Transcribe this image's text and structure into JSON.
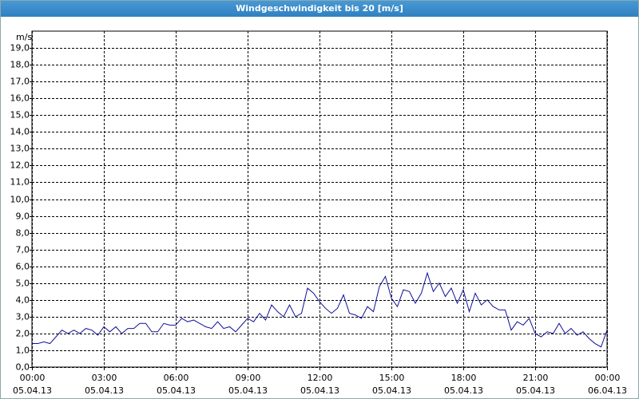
{
  "chart_data": {
    "type": "line",
    "title": "Windgeschwindigkeit bis 20 [m/s]",
    "y_label": "m/s",
    "x": [
      0,
      0.25,
      0.5,
      0.75,
      1,
      1.25,
      1.5,
      1.75,
      2,
      2.25,
      2.5,
      2.75,
      3,
      3.25,
      3.5,
      3.75,
      4,
      4.25,
      4.5,
      4.75,
      5,
      5.25,
      5.5,
      5.75,
      6,
      6.25,
      6.5,
      6.75,
      7,
      7.25,
      7.5,
      7.75,
      8,
      8.25,
      8.5,
      8.75,
      9,
      9.25,
      9.5,
      9.75,
      10,
      10.25,
      10.5,
      10.75,
      11,
      11.25,
      11.5,
      11.75,
      12,
      12.25,
      12.5,
      12.75,
      13,
      13.25,
      13.5,
      13.75,
      14,
      14.25,
      14.5,
      14.75,
      15,
      15.25,
      15.5,
      15.75,
      16,
      16.25,
      16.5,
      16.75,
      17,
      17.25,
      17.5,
      17.75,
      18,
      18.25,
      18.5,
      18.75,
      19,
      19.25,
      19.5,
      19.75,
      20,
      20.25,
      20.5,
      20.75,
      21,
      21.25,
      21.5,
      21.75,
      22,
      22.25,
      22.5,
      22.75,
      23,
      23.25,
      23.5,
      23.75,
      24
    ],
    "series": [
      {
        "name": "Windgeschwindigkeit",
        "color": "#10109a",
        "values": [
          1.4,
          1.4,
          1.5,
          1.4,
          1.8,
          2.2,
          2.0,
          2.2,
          2.0,
          2.3,
          2.2,
          1.9,
          2.4,
          2.1,
          2.4,
          2.0,
          2.3,
          2.3,
          2.6,
          2.6,
          2.1,
          2.1,
          2.6,
          2.5,
          2.5,
          2.9,
          2.7,
          2.8,
          2.6,
          2.4,
          2.3,
          2.7,
          2.3,
          2.4,
          2.1,
          2.5,
          2.9,
          2.7,
          3.2,
          2.8,
          3.7,
          3.3,
          3.0,
          3.7,
          3.0,
          3.2,
          4.7,
          4.4,
          3.9,
          3.5,
          3.2,
          3.5,
          4.3,
          3.2,
          3.1,
          2.9,
          3.6,
          3.3,
          4.8,
          5.4,
          4.1,
          3.6,
          4.6,
          4.5,
          3.8,
          4.4,
          5.6,
          4.5,
          5.0,
          4.2,
          4.7,
          3.8,
          4.6,
          3.3,
          4.4,
          3.7,
          4.0,
          3.6,
          3.4,
          3.4,
          2.2,
          2.7,
          2.5,
          2.9,
          2.0,
          1.8,
          2.1,
          2.0,
          2.6,
          2.0,
          2.3,
          1.9,
          2.1,
          1.7,
          1.4,
          1.2,
          2.2
        ]
      }
    ],
    "xlim": [
      0,
      24
    ],
    "ylim": [
      0,
      20
    ],
    "xticks": [
      {
        "value": 0,
        "label": "00:00\n05.04.13"
      },
      {
        "value": 3,
        "label": "03:00\n05.04.13"
      },
      {
        "value": 6,
        "label": "06:00\n05.04.13"
      },
      {
        "value": 9,
        "label": "09:00\n05.04.13"
      },
      {
        "value": 12,
        "label": "12:00\n05.04.13"
      },
      {
        "value": 15,
        "label": "15:00\n05.04.13"
      },
      {
        "value": 18,
        "label": "18:00\n05.04.13"
      },
      {
        "value": 21,
        "label": "21:00\n05.04.13"
      },
      {
        "value": 24,
        "label": "00:00\n06.04.13"
      }
    ],
    "yticks": [
      {
        "value": 0,
        "label": "0,0"
      },
      {
        "value": 1,
        "label": "1,0"
      },
      {
        "value": 2,
        "label": "2,0"
      },
      {
        "value": 3,
        "label": "3,0"
      },
      {
        "value": 4,
        "label": "4,0"
      },
      {
        "value": 5,
        "label": "5,0"
      },
      {
        "value": 6,
        "label": "6,0"
      },
      {
        "value": 7,
        "label": "7,0"
      },
      {
        "value": 8,
        "label": "8,0"
      },
      {
        "value": 9,
        "label": "9,0"
      },
      {
        "value": 10,
        "label": "10,0"
      },
      {
        "value": 11,
        "label": "11,0"
      },
      {
        "value": 12,
        "label": "12,0"
      },
      {
        "value": 13,
        "label": "13,0"
      },
      {
        "value": 14,
        "label": "14,0"
      },
      {
        "value": 15,
        "label": "15,0"
      },
      {
        "value": 16,
        "label": "16,0"
      },
      {
        "value": 17,
        "label": "17,0"
      },
      {
        "value": 18,
        "label": "18,0"
      },
      {
        "value": 19,
        "label": "19,0"
      }
    ],
    "grid": true
  }
}
